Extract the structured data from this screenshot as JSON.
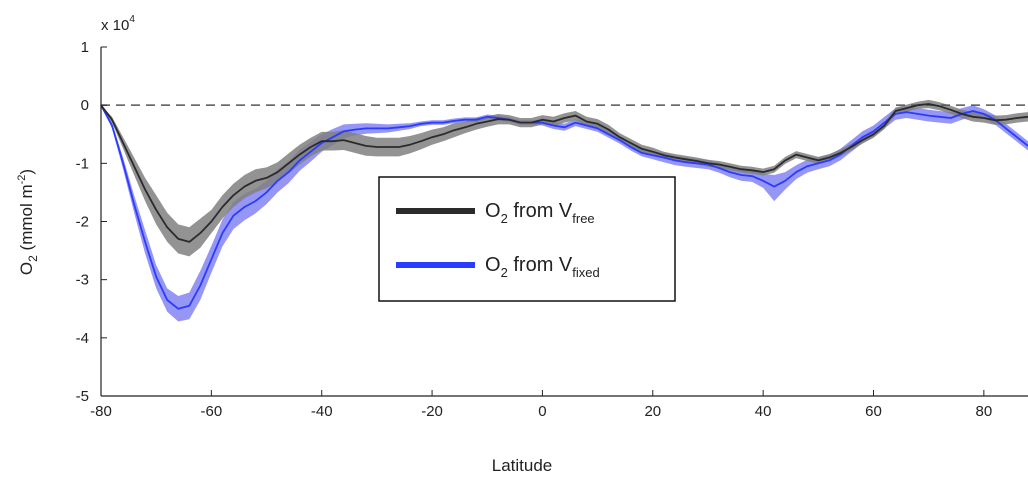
{
  "chart_data": {
    "type": "line",
    "title": "",
    "xlabel": "Latitude",
    "ylabel": {
      "base": "O",
      "sub": "2",
      "rest": " (mmol m",
      "sup": "-2",
      "close": ")"
    },
    "y_exponent_label": {
      "base": "x 10",
      "sup": "4"
    },
    "xlim": [
      -80,
      88
    ],
    "ylim": [
      -5,
      1
    ],
    "xticks": [
      -80,
      -60,
      -40,
      -20,
      0,
      20,
      40,
      60,
      80
    ],
    "xtick_labels": [
      "-80",
      "-60",
      "-40",
      "-20",
      "0",
      "20",
      "40",
      "60",
      "80"
    ],
    "yticks": [
      -5,
      -4,
      -3,
      -2,
      -1,
      0,
      1
    ],
    "ytick_labels": [
      "-5",
      "-4",
      "-3",
      "-2",
      "-1",
      "0",
      "1"
    ],
    "grid": false,
    "zero_line": {
      "y": 0,
      "style": "dashed",
      "color": "#555555"
    },
    "legend": {
      "placement": "center",
      "entries": [
        {
          "base": "O",
          "sub1": "2",
          "mid": " from V",
          "sub2": "free",
          "color": "#2b2b2b"
        },
        {
          "base": "O",
          "sub1": "2",
          "mid": " from V",
          "sub2": "fixed",
          "color": "#2a3cff"
        }
      ]
    },
    "x": [
      -80,
      -78,
      -76,
      -74,
      -72,
      -70,
      -68,
      -66,
      -64,
      -62,
      -60,
      -58,
      -56,
      -54,
      -52,
      -50,
      -48,
      -46,
      -44,
      -42,
      -40,
      -38,
      -36,
      -34,
      -32,
      -30,
      -28,
      -26,
      -24,
      -22,
      -20,
      -18,
      -16,
      -14,
      -12,
      -10,
      -8,
      -6,
      -4,
      -2,
      0,
      2,
      4,
      6,
      8,
      10,
      12,
      14,
      16,
      18,
      20,
      22,
      24,
      26,
      28,
      30,
      32,
      34,
      36,
      38,
      40,
      42,
      44,
      46,
      48,
      50,
      52,
      54,
      56,
      58,
      60,
      62,
      64,
      66,
      68,
      70,
      72,
      74,
      76,
      78,
      80,
      82,
      84,
      86,
      88
    ],
    "series": [
      {
        "name": "O2 from Vfree",
        "color": "#2b2b2b",
        "band_color": "#808080",
        "values": [
          0,
          -0.25,
          -0.65,
          -1.05,
          -1.45,
          -1.8,
          -2.1,
          -2.3,
          -2.35,
          -2.2,
          -2.0,
          -1.75,
          -1.55,
          -1.4,
          -1.3,
          -1.25,
          -1.15,
          -1.0,
          -0.85,
          -0.72,
          -0.62,
          -0.62,
          -0.6,
          -0.65,
          -0.7,
          -0.72,
          -0.72,
          -0.72,
          -0.68,
          -0.62,
          -0.55,
          -0.5,
          -0.43,
          -0.38,
          -0.32,
          -0.28,
          -0.24,
          -0.25,
          -0.3,
          -0.3,
          -0.25,
          -0.28,
          -0.22,
          -0.18,
          -0.28,
          -0.32,
          -0.42,
          -0.55,
          -0.65,
          -0.75,
          -0.8,
          -0.86,
          -0.9,
          -0.93,
          -0.96,
          -1.0,
          -1.02,
          -1.06,
          -1.1,
          -1.12,
          -1.15,
          -1.1,
          -0.95,
          -0.85,
          -0.9,
          -0.95,
          -0.9,
          -0.82,
          -0.72,
          -0.6,
          -0.5,
          -0.35,
          -0.1,
          -0.05,
          0.0,
          0.02,
          -0.02,
          -0.08,
          -0.15,
          -0.2,
          -0.22,
          -0.26,
          -0.25,
          -0.22,
          -0.2
        ],
        "lower": [
          0,
          -0.3,
          -0.75,
          -1.2,
          -1.65,
          -2.05,
          -2.35,
          -2.55,
          -2.6,
          -2.45,
          -2.2,
          -1.95,
          -1.75,
          -1.6,
          -1.5,
          -1.43,
          -1.32,
          -1.17,
          -1.02,
          -0.88,
          -0.78,
          -0.78,
          -0.77,
          -0.82,
          -0.87,
          -0.88,
          -0.88,
          -0.88,
          -0.83,
          -0.76,
          -0.68,
          -0.62,
          -0.55,
          -0.48,
          -0.42,
          -0.37,
          -0.33,
          -0.33,
          -0.38,
          -0.38,
          -0.33,
          -0.36,
          -0.3,
          -0.26,
          -0.36,
          -0.4,
          -0.5,
          -0.62,
          -0.72,
          -0.82,
          -0.87,
          -0.92,
          -0.96,
          -0.99,
          -1.02,
          -1.06,
          -1.08,
          -1.12,
          -1.16,
          -1.18,
          -1.21,
          -1.16,
          -1.01,
          -0.91,
          -0.96,
          -1.01,
          -0.96,
          -0.88,
          -0.78,
          -0.66,
          -0.56,
          -0.41,
          -0.16,
          -0.11,
          -0.06,
          -0.05,
          -0.09,
          -0.15,
          -0.22,
          -0.28,
          -0.3,
          -0.34,
          -0.33,
          -0.3,
          -0.28
        ],
        "upper": [
          0,
          -0.2,
          -0.55,
          -0.9,
          -1.25,
          -1.55,
          -1.85,
          -2.05,
          -2.1,
          -1.95,
          -1.8,
          -1.55,
          -1.35,
          -1.2,
          -1.1,
          -1.07,
          -0.98,
          -0.83,
          -0.68,
          -0.56,
          -0.46,
          -0.46,
          -0.43,
          -0.48,
          -0.53,
          -0.56,
          -0.56,
          -0.56,
          -0.53,
          -0.48,
          -0.42,
          -0.38,
          -0.31,
          -0.28,
          -0.22,
          -0.19,
          -0.15,
          -0.17,
          -0.22,
          -0.22,
          -0.17,
          -0.2,
          -0.14,
          -0.1,
          -0.2,
          -0.24,
          -0.34,
          -0.48,
          -0.58,
          -0.68,
          -0.73,
          -0.8,
          -0.84,
          -0.87,
          -0.9,
          -0.94,
          -0.96,
          -1.0,
          -1.04,
          -1.06,
          -1.09,
          -1.04,
          -0.89,
          -0.79,
          -0.84,
          -0.89,
          -0.84,
          -0.76,
          -0.66,
          -0.54,
          -0.44,
          -0.29,
          -0.04,
          0.01,
          0.06,
          0.09,
          0.05,
          -0.01,
          -0.08,
          -0.12,
          -0.14,
          -0.18,
          -0.17,
          -0.14,
          -0.12
        ]
      },
      {
        "name": "O2 from Vfixed",
        "color": "#2a3cff",
        "band_color": "#6a6af0",
        "values": [
          0,
          -0.35,
          -1.0,
          -1.7,
          -2.35,
          -2.95,
          -3.35,
          -3.5,
          -3.45,
          -3.1,
          -2.65,
          -2.2,
          -1.9,
          -1.75,
          -1.65,
          -1.5,
          -1.3,
          -1.15,
          -0.95,
          -0.8,
          -0.65,
          -0.55,
          -0.45,
          -0.42,
          -0.4,
          -0.4,
          -0.4,
          -0.38,
          -0.36,
          -0.32,
          -0.3,
          -0.3,
          -0.27,
          -0.25,
          -0.25,
          -0.2,
          -0.22,
          -0.25,
          -0.3,
          -0.3,
          -0.3,
          -0.35,
          -0.38,
          -0.3,
          -0.35,
          -0.4,
          -0.5,
          -0.6,
          -0.72,
          -0.82,
          -0.86,
          -0.9,
          -0.95,
          -0.98,
          -1.0,
          -1.02,
          -1.08,
          -1.15,
          -1.2,
          -1.22,
          -1.3,
          -1.4,
          -1.3,
          -1.15,
          -1.05,
          -1.0,
          -0.95,
          -0.85,
          -0.7,
          -0.55,
          -0.45,
          -0.3,
          -0.15,
          -0.12,
          -0.15,
          -0.18,
          -0.2,
          -0.22,
          -0.15,
          -0.1,
          -0.15,
          -0.25,
          -0.4,
          -0.55,
          -0.7
        ],
        "lower": [
          0,
          -0.4,
          -1.1,
          -1.85,
          -2.55,
          -3.15,
          -3.55,
          -3.72,
          -3.68,
          -3.35,
          -2.88,
          -2.43,
          -2.13,
          -1.98,
          -1.86,
          -1.7,
          -1.5,
          -1.34,
          -1.13,
          -0.97,
          -0.8,
          -0.69,
          -0.57,
          -0.52,
          -0.49,
          -0.48,
          -0.47,
          -0.44,
          -0.41,
          -0.36,
          -0.34,
          -0.34,
          -0.31,
          -0.29,
          -0.29,
          -0.24,
          -0.26,
          -0.29,
          -0.34,
          -0.34,
          -0.35,
          -0.41,
          -0.44,
          -0.36,
          -0.41,
          -0.46,
          -0.56,
          -0.66,
          -0.78,
          -0.88,
          -0.93,
          -0.98,
          -1.03,
          -1.06,
          -1.08,
          -1.1,
          -1.16,
          -1.24,
          -1.3,
          -1.32,
          -1.42,
          -1.65,
          -1.45,
          -1.27,
          -1.16,
          -1.1,
          -1.05,
          -0.95,
          -0.8,
          -0.65,
          -0.55,
          -0.4,
          -0.25,
          -0.22,
          -0.25,
          -0.28,
          -0.3,
          -0.32,
          -0.25,
          -0.2,
          -0.23,
          -0.33,
          -0.48,
          -0.63,
          -0.78
        ],
        "upper": [
          0,
          -0.3,
          -0.9,
          -1.55,
          -2.15,
          -2.75,
          -3.15,
          -3.28,
          -3.22,
          -2.85,
          -2.42,
          -1.97,
          -1.67,
          -1.52,
          -1.44,
          -1.3,
          -1.1,
          -0.96,
          -0.77,
          -0.63,
          -0.5,
          -0.41,
          -0.33,
          -0.32,
          -0.31,
          -0.32,
          -0.33,
          -0.32,
          -0.31,
          -0.28,
          -0.26,
          -0.26,
          -0.23,
          -0.21,
          -0.21,
          -0.16,
          -0.18,
          -0.21,
          -0.26,
          -0.26,
          -0.25,
          -0.29,
          -0.32,
          -0.24,
          -0.29,
          -0.34,
          -0.44,
          -0.54,
          -0.66,
          -0.76,
          -0.79,
          -0.82,
          -0.87,
          -0.9,
          -0.92,
          -0.94,
          -1.0,
          -1.06,
          -1.1,
          -1.12,
          -1.18,
          -1.2,
          -1.15,
          -1.03,
          -0.94,
          -0.9,
          -0.85,
          -0.75,
          -0.6,
          -0.45,
          -0.35,
          -0.2,
          -0.05,
          -0.02,
          -0.05,
          -0.08,
          -0.1,
          -0.12,
          -0.05,
          0.0,
          -0.07,
          -0.17,
          -0.32,
          -0.47,
          -0.62
        ]
      }
    ]
  }
}
